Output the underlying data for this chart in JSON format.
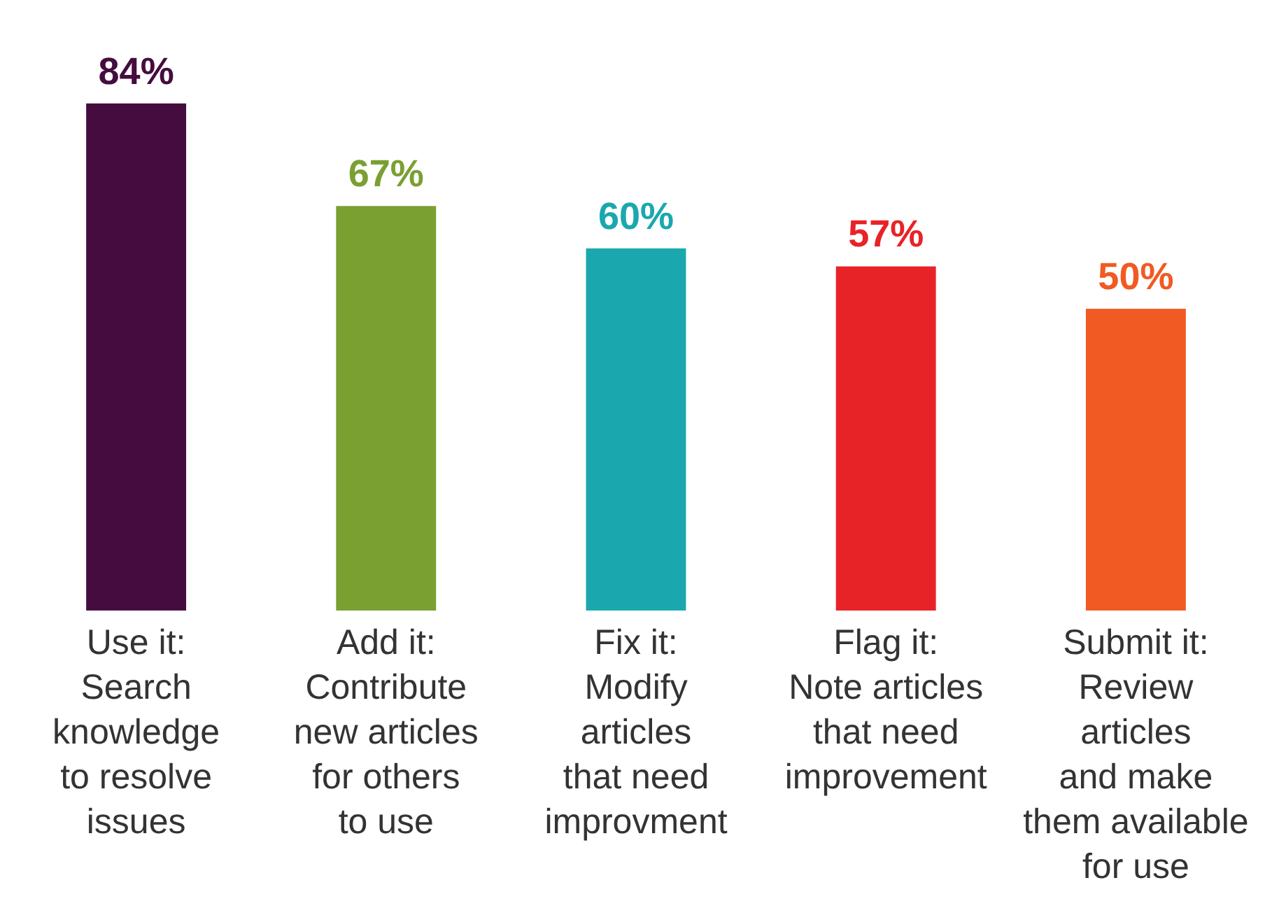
{
  "chart_data": {
    "type": "bar",
    "categories": [
      "Use it:\nSearch\nknowledge\nto resolve\nissues",
      "Add it:\nContribute\nnew articles\nfor others\nto use",
      "Fix it:\nModify\narticles\nthat need\nimprovment",
      "Flag it:\nNote articles\nthat need\nimprovement",
      "Submit it:\nReview\narticles\nand make\nthem available\nfor use"
    ],
    "values": [
      84,
      67,
      60,
      57,
      50
    ],
    "colors": [
      "#450d3f",
      "#7aa032",
      "#1aa8ae",
      "#e82328",
      "#f15a22"
    ],
    "value_labels": [
      "84%",
      "67%",
      "60%",
      "57%",
      "50%"
    ],
    "grid": false,
    "legend": false
  }
}
